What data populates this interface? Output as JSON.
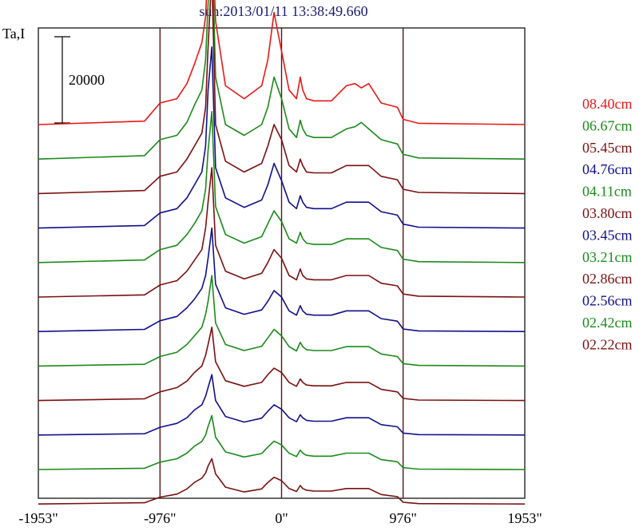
{
  "title": "sun:2013/01/11 13:38:49.660",
  "ylabel": "Ta,I",
  "scale_bar_label": "20000",
  "x_ticks": [
    "-1953\"",
    "-976\"",
    "0\"",
    "976\"",
    "1953\""
  ],
  "colors": {
    "axis": "#000000",
    "limb_lines": "#5a1414",
    "title": "#1a1a6e"
  },
  "chart_data": {
    "type": "line",
    "title": "sun:2013/01/11 13:38:49.660",
    "xlabel": "",
    "ylabel": "Ta,I",
    "xlim": [
      -1953,
      1953
    ],
    "x_tick_values": [
      -1953,
      -976,
      0,
      976,
      1953
    ],
    "vertical_lines_at": [
      -976,
      0,
      976
    ],
    "grid": false,
    "legend_position": "right",
    "scale_bar": {
      "value": 20000
    },
    "x": [
      -1953,
      -1100,
      -976,
      -840,
      -760,
      -700,
      -640,
      -610,
      -590,
      -560,
      -530,
      -450,
      -300,
      -160,
      -110,
      -60,
      0,
      60,
      120,
      150,
      170,
      200,
      260,
      400,
      520,
      590,
      640,
      700,
      800,
      930,
      976,
      1100,
      1953
    ],
    "series": [
      {
        "name": "08.40cm",
        "color": "#e81818",
        "offset": 80000,
        "values": [
          0,
          800,
          5000,
          6000,
          9500,
          14000,
          19000,
          25000,
          38000,
          47000,
          24000,
          9000,
          6000,
          9000,
          15000,
          26000,
          17000,
          8000,
          6000,
          11000,
          8000,
          6000,
          5500,
          5500,
          9000,
          9500,
          8500,
          9500,
          5000,
          4000,
          1200,
          300,
          0
        ]
      },
      {
        "name": "06.67cm",
        "color": "#1a8a1a",
        "offset": 72000,
        "values": [
          0,
          800,
          4500,
          5500,
          8500,
          12500,
          16000,
          23000,
          36000,
          52000,
          19000,
          8000,
          5500,
          8000,
          12000,
          19000,
          14000,
          7000,
          5000,
          9000,
          7000,
          5500,
          5000,
          5000,
          7000,
          7500,
          8500,
          7000,
          4500,
          3500,
          1100,
          250,
          0
        ]
      },
      {
        "name": "05.45cm",
        "color": "#7a1010",
        "offset": 64000,
        "values": [
          0,
          700,
          4000,
          5000,
          8000,
          11000,
          14000,
          20000,
          34000,
          51000,
          16000,
          7500,
          5000,
          7000,
          11000,
          16000,
          12500,
          6500,
          5000,
          8000,
          6500,
          5000,
          4800,
          4800,
          6500,
          6500,
          6500,
          6500,
          4000,
          3200,
          1000,
          250,
          0
        ]
      },
      {
        "name": "04.76cm",
        "color": "#10108a",
        "offset": 56000,
        "values": [
          0,
          600,
          3500,
          4500,
          7000,
          10000,
          13000,
          19000,
          32000,
          42000,
          14000,
          7000,
          4800,
          6500,
          10000,
          15000,
          11000,
          6000,
          4500,
          7500,
          6000,
          4800,
          4500,
          4500,
          6000,
          6000,
          6000,
          6000,
          3800,
          3000,
          900,
          200,
          0
        ]
      },
      {
        "name": "04.11cm",
        "color": "#1a8a1a",
        "offset": 48000,
        "values": [
          0,
          600,
          3000,
          4000,
          6500,
          9000,
          12000,
          17000,
          26000,
          35000,
          13000,
          6500,
          4500,
          6000,
          9000,
          12000,
          9500,
          5500,
          4500,
          7000,
          5500,
          4500,
          4200,
          4200,
          5500,
          5500,
          5500,
          5500,
          3500,
          2800,
          800,
          200,
          0
        ]
      },
      {
        "name": "03.80cm",
        "color": "#7a1010",
        "offset": 40000,
        "values": [
          0,
          500,
          2800,
          3800,
          6000,
          8500,
          11000,
          16000,
          22000,
          30000,
          12000,
          6000,
          4200,
          5500,
          8000,
          11000,
          9000,
          5000,
          4000,
          6500,
          5000,
          4200,
          4000,
          4000,
          5000,
          5000,
          5000,
          5000,
          3200,
          2600,
          700,
          200,
          0
        ]
      },
      {
        "name": "03.45cm",
        "color": "#10108a",
        "offset": 32000,
        "values": [
          0,
          500,
          2500,
          3500,
          5500,
          7500,
          10000,
          13000,
          17000,
          24000,
          11000,
          5500,
          4000,
          5000,
          7000,
          9500,
          8000,
          4800,
          3800,
          6000,
          4800,
          4000,
          3800,
          3800,
          4800,
          4800,
          4800,
          4800,
          3000,
          2400,
          600,
          150,
          0
        ]
      },
      {
        "name": "03.21cm",
        "color": "#1a8a1a",
        "offset": 24000,
        "values": [
          0,
          400,
          2200,
          3200,
          5000,
          7000,
          9000,
          12000,
          15000,
          21000,
          10000,
          5000,
          3600,
          4600,
          6500,
          8500,
          7000,
          4500,
          3500,
          5500,
          4500,
          3800,
          3600,
          3600,
          4500,
          4500,
          4500,
          4500,
          2800,
          2200,
          550,
          150,
          0
        ]
      },
      {
        "name": "02.86cm",
        "color": "#7a1010",
        "offset": 16000,
        "values": [
          0,
          400,
          2000,
          3000,
          4500,
          6500,
          8000,
          10500,
          13000,
          17000,
          9000,
          4600,
          3300,
          4200,
          6000,
          7500,
          6500,
          4200,
          3300,
          5000,
          4200,
          3600,
          3400,
          3400,
          4200,
          4200,
          4200,
          4200,
          2600,
          2000,
          500,
          120,
          0
        ]
      },
      {
        "name": "02.56cm",
        "color": "#10108a",
        "offset": 8000,
        "values": [
          0,
          300,
          1800,
          2700,
          4000,
          5800,
          7000,
          9000,
          11000,
          14000,
          8000,
          4300,
          3000,
          3900,
          5500,
          7000,
          6000,
          4000,
          3100,
          4700,
          4000,
          3400,
          3200,
          3200,
          4000,
          4000,
          4000,
          4000,
          2400,
          1900,
          450,
          100,
          0
        ]
      },
      {
        "name": "02.42cm",
        "color": "#1a8a1a",
        "offset": 0,
        "values": [
          0,
          300,
          1700,
          2500,
          3800,
          5400,
          6500,
          8000,
          10000,
          12500,
          7500,
          4100,
          2900,
          3700,
          5200,
          6600,
          5700,
          3800,
          3000,
          4500,
          3800,
          3300,
          3100,
          3100,
          3800,
          3800,
          3800,
          3800,
          2300,
          1800,
          420,
          100,
          0
        ]
      },
      {
        "name": "02.22cm",
        "color": "#7a1010",
        "offset": -8000,
        "values": [
          0,
          300,
          1600,
          2300,
          3500,
          5000,
          6000,
          7200,
          8800,
          10500,
          7000,
          3900,
          2800,
          3500,
          5000,
          6200,
          5400,
          3600,
          2900,
          4300,
          3600,
          3200,
          3000,
          3000,
          3600,
          3600,
          3600,
          3600,
          2200,
          1700,
          400,
          90,
          0
        ]
      }
    ]
  }
}
